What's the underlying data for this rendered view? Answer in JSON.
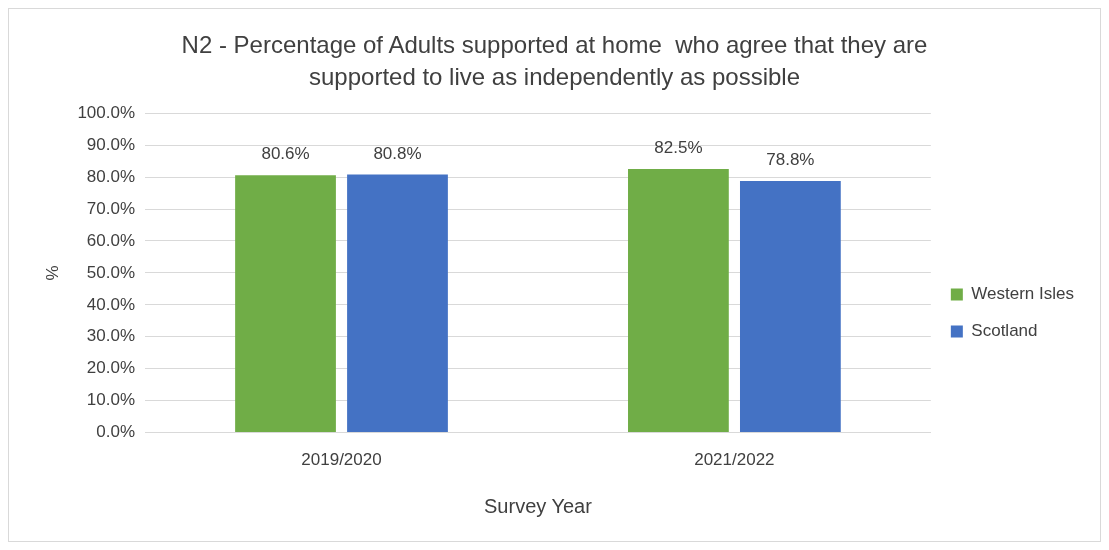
{
  "chart_data": {
    "type": "bar",
    "title": "N2 - Percentage of Adults supported at home  who agree that they are supported to live as independently as possible",
    "xlabel": "Survey Year",
    "ylabel": "%",
    "categories": [
      "2019/2020",
      "2021/2022"
    ],
    "series": [
      {
        "name": "Western Isles",
        "color": "#70ad47",
        "values": [
          80.6,
          82.5
        ],
        "value_labels": [
          "80.6%",
          "82.5%"
        ]
      },
      {
        "name": "Scotland",
        "color": "#4472c4",
        "values": [
          80.8,
          78.8
        ],
        "value_labels": [
          "80.8%",
          "78.8%"
        ]
      }
    ],
    "ylim": [
      0,
      100
    ],
    "yticks": [
      {
        "value": 0,
        "label": "0.0%"
      },
      {
        "value": 10,
        "label": "10.0%"
      },
      {
        "value": 20,
        "label": "20.0%"
      },
      {
        "value": 30,
        "label": "30.0%"
      },
      {
        "value": 40,
        "label": "40.0%"
      },
      {
        "value": 50,
        "label": "50.0%"
      },
      {
        "value": 60,
        "label": "60.0%"
      },
      {
        "value": 70,
        "label": "70.0%"
      },
      {
        "value": 80,
        "label": "80.0%"
      },
      {
        "value": 90,
        "label": "90.0%"
      },
      {
        "value": 100,
        "label": "100.0%"
      }
    ],
    "grid": "y",
    "legend": "right"
  }
}
